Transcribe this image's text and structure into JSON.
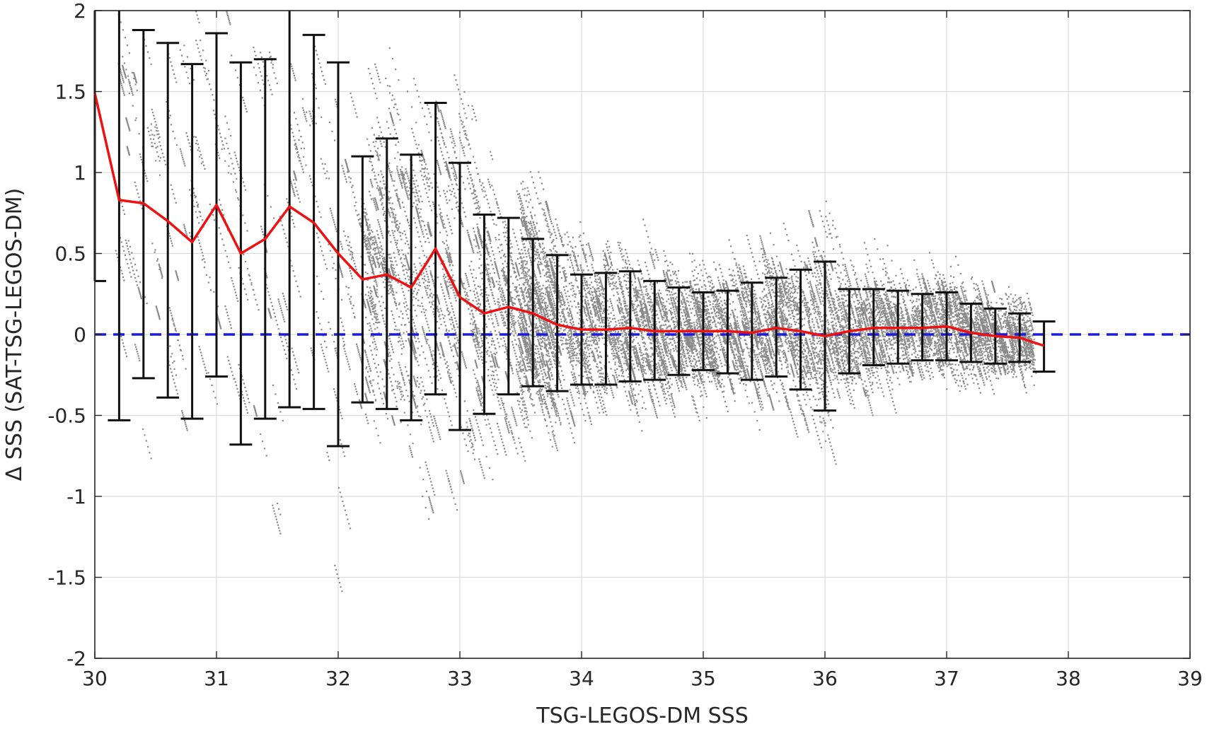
{
  "chart_data": {
    "type": "scatter",
    "title": "",
    "xlabel": "TSG-LEGOS-DM SSS",
    "ylabel": "Δ SSS (SAT-TSG-LEGOS-DM)",
    "xlim": [
      30,
      39
    ],
    "ylim": [
      -2,
      2
    ],
    "xticks": [
      "30",
      "31",
      "32",
      "33",
      "34",
      "35",
      "36",
      "37",
      "38",
      "39"
    ],
    "yticks": [
      "-2",
      "-1.5",
      "-1",
      "-0.5",
      "0",
      "0.5",
      "1",
      "1.5",
      "2"
    ],
    "grid": true,
    "reference_line": {
      "y": 0,
      "style": "dashed",
      "color": "#1a1ae6"
    },
    "colors": {
      "scatter": "#8a8a8a",
      "mean_line": "#ee1111",
      "error_bars": "#111111",
      "reference": "#1a1ae6"
    },
    "series": [
      {
        "kind": "mean_with_error_bars",
        "x": [
          30.0,
          30.2,
          30.4,
          30.6,
          30.8,
          31.0,
          31.2,
          31.4,
          31.6,
          31.8,
          32.0,
          32.2,
          32.4,
          32.6,
          32.8,
          33.0,
          33.2,
          33.4,
          33.6,
          33.8,
          34.0,
          34.2,
          34.4,
          34.6,
          34.8,
          35.0,
          35.2,
          35.4,
          35.6,
          35.8,
          36.0,
          36.2,
          36.4,
          36.6,
          36.8,
          37.0,
          37.2,
          37.4,
          37.6,
          37.8
        ],
        "mean": [
          1.49,
          0.83,
          0.81,
          0.7,
          0.57,
          0.8,
          0.5,
          0.59,
          0.79,
          0.69,
          0.5,
          0.34,
          0.37,
          0.29,
          0.53,
          0.23,
          0.13,
          0.17,
          0.13,
          0.06,
          0.03,
          0.03,
          0.04,
          0.02,
          0.02,
          0.02,
          0.02,
          0.01,
          0.04,
          0.02,
          -0.01,
          0.02,
          0.04,
          0.04,
          0.04,
          0.05,
          0.01,
          -0.01,
          -0.02,
          -0.07
        ],
        "upper": [
          2.0,
          2.0,
          1.88,
          1.8,
          1.67,
          1.86,
          1.68,
          1.7,
          2.0,
          1.85,
          1.68,
          1.1,
          1.21,
          1.11,
          1.43,
          1.06,
          0.74,
          0.72,
          0.59,
          0.49,
          0.37,
          0.38,
          0.39,
          0.33,
          0.29,
          0.26,
          0.27,
          0.32,
          0.35,
          0.4,
          0.45,
          0.28,
          0.28,
          0.27,
          0.25,
          0.26,
          0.19,
          0.16,
          0.13,
          0.08
        ],
        "lower": [
          0.33,
          -0.53,
          -0.27,
          -0.39,
          -0.52,
          -0.26,
          -0.68,
          -0.52,
          -0.45,
          -0.46,
          -0.69,
          -0.42,
          -0.46,
          -0.53,
          -0.37,
          -0.59,
          -0.49,
          -0.37,
          -0.32,
          -0.35,
          -0.31,
          -0.31,
          -0.29,
          -0.28,
          -0.25,
          -0.22,
          -0.24,
          -0.28,
          -0.26,
          -0.34,
          -0.47,
          -0.24,
          -0.19,
          -0.18,
          -0.16,
          -0.16,
          -0.17,
          -0.18,
          -0.17,
          -0.23
        ]
      }
    ]
  }
}
